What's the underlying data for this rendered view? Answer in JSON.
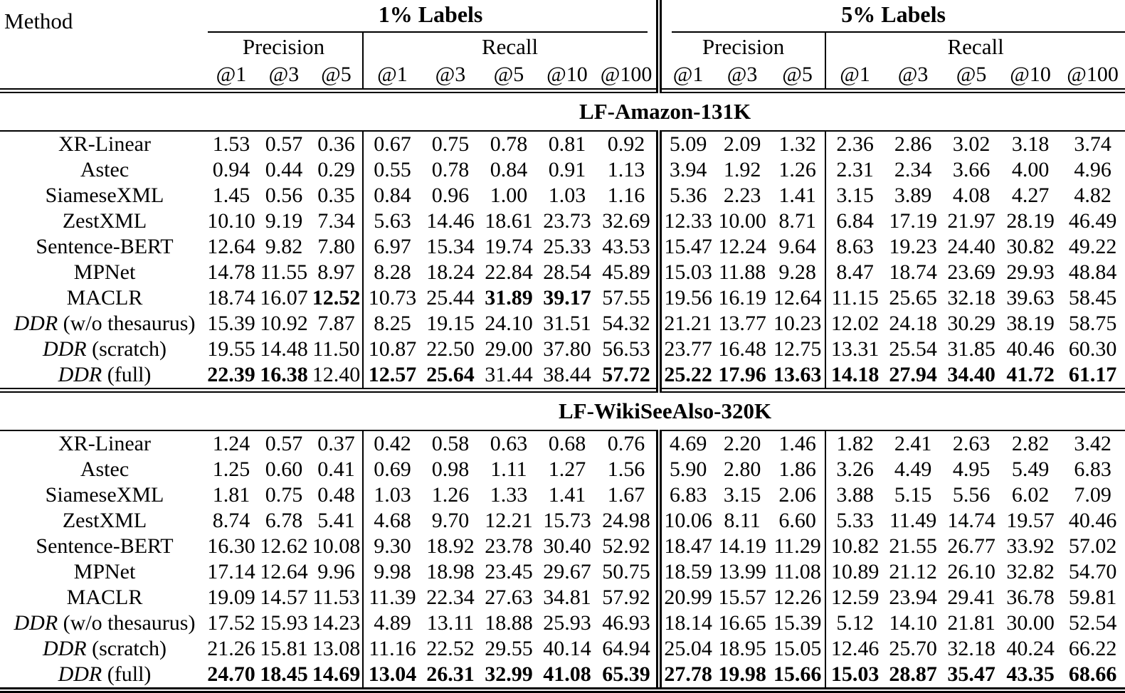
{
  "table": {
    "method_header": "Method",
    "groups": [
      {
        "label": "1% Labels",
        "precision_label": "Precision",
        "recall_label": "Recall",
        "precision_cols": [
          "@1",
          "@3",
          "@5"
        ],
        "recall_cols": [
          "@1",
          "@3",
          "@5",
          "@10",
          "@100"
        ]
      },
      {
        "label": "5% Labels",
        "precision_label": "Precision",
        "recall_label": "Recall",
        "precision_cols": [
          "@1",
          "@3",
          "@5"
        ],
        "recall_cols": [
          "@1",
          "@3",
          "@5",
          "@10",
          "@100"
        ]
      }
    ],
    "sections": [
      {
        "title": "LF-Amazon-131K",
        "rows": [
          {
            "em": "",
            "rest": "XR-Linear",
            "v": [
              "1.53",
              "0.57",
              "0.36",
              "0.67",
              "0.75",
              "0.78",
              "0.81",
              "0.92",
              "5.09",
              "2.09",
              "1.32",
              "2.36",
              "2.86",
              "3.02",
              "3.18",
              "3.74"
            ],
            "b": []
          },
          {
            "em": "",
            "rest": "Astec",
            "v": [
              "0.94",
              "0.44",
              "0.29",
              "0.55",
              "0.78",
              "0.84",
              "0.91",
              "1.13",
              "3.94",
              "1.92",
              "1.26",
              "2.31",
              "2.34",
              "3.66",
              "4.00",
              "4.96"
            ],
            "b": []
          },
          {
            "em": "",
            "rest": "SiameseXML",
            "v": [
              "1.45",
              "0.56",
              "0.35",
              "0.84",
              "0.96",
              "1.00",
              "1.03",
              "1.16",
              "5.36",
              "2.23",
              "1.41",
              "3.15",
              "3.89",
              "4.08",
              "4.27",
              "4.82"
            ],
            "b": []
          },
          {
            "em": "",
            "rest": "ZestXML",
            "v": [
              "10.10",
              "9.19",
              "7.34",
              "5.63",
              "14.46",
              "18.61",
              "23.73",
              "32.69",
              "12.33",
              "10.00",
              "8.71",
              "6.84",
              "17.19",
              "21.97",
              "28.19",
              "46.49"
            ],
            "b": []
          },
          {
            "em": "",
            "rest": "Sentence-BERT",
            "v": [
              "12.64",
              "9.82",
              "7.80",
              "6.97",
              "15.34",
              "19.74",
              "25.33",
              "43.53",
              "15.47",
              "12.24",
              "9.64",
              "8.63",
              "19.23",
              "24.40",
              "30.82",
              "49.22"
            ],
            "b": []
          },
          {
            "em": "",
            "rest": "MPNet",
            "v": [
              "14.78",
              "11.55",
              "8.97",
              "8.28",
              "18.24",
              "22.84",
              "28.54",
              "45.89",
              "15.03",
              "11.88",
              "9.28",
              "8.47",
              "18.74",
              "23.69",
              "29.93",
              "48.84"
            ],
            "b": []
          },
          {
            "em": "",
            "rest": "MACLR",
            "v": [
              "18.74",
              "16.07",
              "12.52",
              "10.73",
              "25.44",
              "31.89",
              "39.17",
              "57.55",
              "19.56",
              "16.19",
              "12.64",
              "11.15",
              "25.65",
              "32.18",
              "39.63",
              "58.45"
            ],
            "b": [
              2,
              5,
              6
            ]
          },
          {
            "em": "DDR",
            "rest": " (w/o thesaurus)",
            "v": [
              "15.39",
              "10.92",
              "7.87",
              "8.25",
              "19.15",
              "24.10",
              "31.51",
              "54.32",
              "21.21",
              "13.77",
              "10.23",
              "12.02",
              "24.18",
              "30.29",
              "38.19",
              "58.75"
            ],
            "b": []
          },
          {
            "em": "DDR",
            "rest": " (scratch)",
            "v": [
              "19.55",
              "14.48",
              "11.50",
              "10.87",
              "22.50",
              "29.00",
              "37.80",
              "56.53",
              "23.77",
              "16.48",
              "12.75",
              "13.31",
              "25.54",
              "31.85",
              "40.46",
              "60.30"
            ],
            "b": []
          },
          {
            "em": "DDR",
            "rest": " (full)",
            "v": [
              "22.39",
              "16.38",
              "12.40",
              "12.57",
              "25.64",
              "31.44",
              "38.44",
              "57.72",
              "25.22",
              "17.96",
              "13.63",
              "14.18",
              "27.94",
              "34.40",
              "41.72",
              "61.17"
            ],
            "b": [
              0,
              1,
              3,
              4,
              7,
              8,
              9,
              10,
              11,
              12,
              13,
              14,
              15
            ]
          }
        ]
      },
      {
        "title": "LF-WikiSeeAlso-320K",
        "rows": [
          {
            "em": "",
            "rest": "XR-Linear",
            "v": [
              "1.24",
              "0.57",
              "0.37",
              "0.42",
              "0.58",
              "0.63",
              "0.68",
              "0.76",
              "4.69",
              "2.20",
              "1.46",
              "1.82",
              "2.41",
              "2.63",
              "2.82",
              "3.42"
            ],
            "b": []
          },
          {
            "em": "",
            "rest": "Astec",
            "v": [
              "1.25",
              "0.60",
              "0.41",
              "0.69",
              "0.98",
              "1.11",
              "1.27",
              "1.56",
              "5.90",
              "2.80",
              "1.86",
              "3.26",
              "4.49",
              "4.95",
              "5.49",
              "6.83"
            ],
            "b": []
          },
          {
            "em": "",
            "rest": "SiameseXML",
            "v": [
              "1.81",
              "0.75",
              "0.48",
              "1.03",
              "1.26",
              "1.33",
              "1.41",
              "1.67",
              "6.83",
              "3.15",
              "2.06",
              "3.88",
              "5.15",
              "5.56",
              "6.02",
              "7.09"
            ],
            "b": []
          },
          {
            "em": "",
            "rest": "ZestXML",
            "v": [
              "8.74",
              "6.78",
              "5.41",
              "4.68",
              "9.70",
              "12.21",
              "15.73",
              "24.98",
              "10.06",
              "8.11",
              "6.60",
              "5.33",
              "11.49",
              "14.74",
              "19.57",
              "40.46"
            ],
            "b": []
          },
          {
            "em": "",
            "rest": "Sentence-BERT",
            "v": [
              "16.30",
              "12.62",
              "10.08",
              "9.30",
              "18.92",
              "23.78",
              "30.40",
              "52.92",
              "18.47",
              "14.19",
              "11.29",
              "10.82",
              "21.55",
              "26.77",
              "33.92",
              "57.02"
            ],
            "b": []
          },
          {
            "em": "",
            "rest": "MPNet",
            "v": [
              "17.14",
              "12.64",
              "9.96",
              "9.98",
              "18.98",
              "23.45",
              "29.67",
              "50.75",
              "18.59",
              "13.99",
              "11.08",
              "10.89",
              "21.12",
              "26.10",
              "32.82",
              "54.70"
            ],
            "b": []
          },
          {
            "em": "",
            "rest": "MACLR",
            "v": [
              "19.09",
              "14.57",
              "11.53",
              "11.39",
              "22.34",
              "27.63",
              "34.81",
              "57.92",
              "20.99",
              "15.57",
              "12.26",
              "12.59",
              "23.94",
              "29.41",
              "36.78",
              "59.81"
            ],
            "b": []
          },
          {
            "em": "DDR",
            "rest": " (w/o thesaurus)",
            "v": [
              "17.52",
              "15.93",
              "14.23",
              "4.89",
              "13.11",
              "18.88",
              "25.93",
              "46.93",
              "18.14",
              "16.65",
              "15.39",
              "5.12",
              "14.10",
              "21.81",
              "30.00",
              "52.54"
            ],
            "b": []
          },
          {
            "em": "DDR",
            "rest": " (scratch)",
            "v": [
              "21.26",
              "15.81",
              "13.08",
              "11.16",
              "22.52",
              "29.55",
              "40.14",
              "64.94",
              "25.04",
              "18.95",
              "15.05",
              "12.46",
              "25.70",
              "32.18",
              "40.24",
              "66.22"
            ],
            "b": []
          },
          {
            "em": "DDR",
            "rest": " (full)",
            "v": [
              "24.70",
              "18.45",
              "14.69",
              "13.04",
              "26.31",
              "32.99",
              "41.08",
              "65.39",
              "27.78",
              "19.98",
              "15.66",
              "15.03",
              "28.87",
              "35.47",
              "43.35",
              "68.66"
            ],
            "b": [
              0,
              1,
              2,
              3,
              4,
              5,
              6,
              7,
              8,
              9,
              10,
              11,
              12,
              13,
              14,
              15
            ]
          }
        ]
      }
    ]
  }
}
